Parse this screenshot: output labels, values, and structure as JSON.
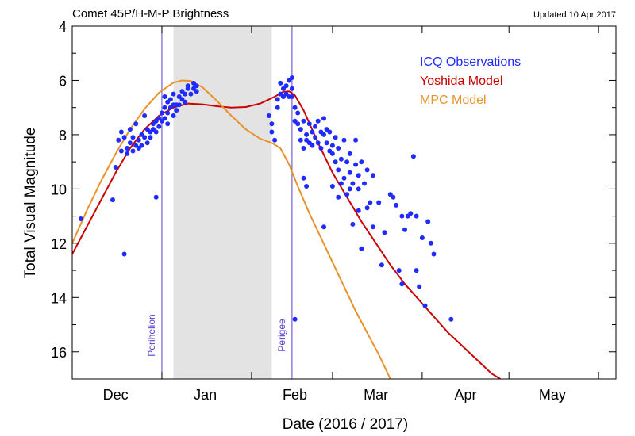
{
  "chart_data": {
    "type": "scatter",
    "title": "Comet 45P/H-M-P Brightness",
    "subtitle": "Updated 10 Apr 2017",
    "xlabel": "Date (2016 / 2017)",
    "ylabel": "Total Visual Magnitude",
    "x_ticks": [
      "Dec",
      "Jan",
      "Feb",
      "Mar",
      "Apr",
      "May"
    ],
    "x_tick_days": [
      15,
      46,
      77,
      105,
      136,
      166
    ],
    "xlim_days": [
      0,
      188
    ],
    "ylim": [
      17,
      4
    ],
    "y_ticks": [
      4,
      6,
      8,
      10,
      12,
      14,
      16
    ],
    "y_inverted": true,
    "grid": false,
    "legend_position": "top-right",
    "shaded_region": {
      "from_day": 35,
      "to_day": 69,
      "color": "#e3e3e3"
    },
    "markers": [
      {
        "label": "Perihelion",
        "day": 31,
        "color": "#5b3fd0"
      },
      {
        "label": "Perigee",
        "day": 76,
        "color": "#5b3fd0"
      }
    ],
    "series": [
      {
        "name": "ICQ Observations",
        "color": "#1f2bff",
        "kind": "points",
        "points": [
          [
            3,
            11.1
          ],
          [
            14,
            10.4
          ],
          [
            15,
            9.2
          ],
          [
            16,
            8.2
          ],
          [
            17,
            8.6
          ],
          [
            17,
            7.9
          ],
          [
            18,
            8.1
          ],
          [
            19,
            8.5
          ],
          [
            19,
            8.7
          ],
          [
            20,
            8.3
          ],
          [
            20,
            7.8
          ],
          [
            21,
            8.1
          ],
          [
            21,
            8.6
          ],
          [
            22,
            8.4
          ],
          [
            22,
            7.6
          ],
          [
            23,
            8.2
          ],
          [
            23,
            8.5
          ],
          [
            24,
            8.0
          ],
          [
            24,
            8.4
          ],
          [
            25,
            8.1
          ],
          [
            25,
            7.3
          ],
          [
            26,
            8.3
          ],
          [
            26,
            7.8
          ],
          [
            27,
            7.9
          ],
          [
            27,
            8.1
          ],
          [
            28,
            7.6
          ],
          [
            28,
            7.8
          ],
          [
            29,
            7.5
          ],
          [
            29,
            7.9
          ],
          [
            30,
            7.4
          ],
          [
            30,
            7.7
          ],
          [
            31,
            7.5
          ],
          [
            31,
            7.2
          ],
          [
            32,
            7.4
          ],
          [
            32,
            7.0
          ],
          [
            32,
            6.6
          ],
          [
            33,
            7.2
          ],
          [
            33,
            6.8
          ],
          [
            33,
            7.6
          ],
          [
            34,
            7.0
          ],
          [
            34,
            6.7
          ],
          [
            35,
            7.3
          ],
          [
            35,
            6.9
          ],
          [
            35,
            6.5
          ],
          [
            36,
            6.9
          ],
          [
            36,
            7.1
          ],
          [
            37,
            6.6
          ],
          [
            37,
            6.9
          ],
          [
            38,
            6.7
          ],
          [
            38,
            6.4
          ],
          [
            39,
            6.8
          ],
          [
            39,
            6.5
          ],
          [
            40,
            6.3
          ],
          [
            40,
            6.2
          ],
          [
            41,
            6.5
          ],
          [
            42,
            6.3
          ],
          [
            42,
            6.1
          ],
          [
            43,
            6.4
          ],
          [
            43,
            6.2
          ],
          [
            18,
            12.4
          ],
          [
            29,
            10.3
          ],
          [
            68,
            7.3
          ],
          [
            69,
            7.6
          ],
          [
            69,
            7.9
          ],
          [
            70,
            8.2
          ],
          [
            71,
            7.0
          ],
          [
            71,
            6.7
          ],
          [
            72,
            6.5
          ],
          [
            72,
            6.1
          ],
          [
            73,
            6.3
          ],
          [
            73,
            6.6
          ],
          [
            74,
            6.2
          ],
          [
            74,
            6.5
          ],
          [
            75,
            6.0
          ],
          [
            75,
            6.6
          ],
          [
            76,
            5.9
          ],
          [
            76,
            6.3
          ],
          [
            76,
            6.6
          ],
          [
            77,
            7.0
          ],
          [
            77,
            7.5
          ],
          [
            77,
            14.8
          ],
          [
            78,
            7.2
          ],
          [
            78,
            7.6
          ],
          [
            79,
            7.8
          ],
          [
            79,
            8.2
          ],
          [
            80,
            7.5
          ],
          [
            80,
            9.6
          ],
          [
            80,
            8.5
          ],
          [
            81,
            8.0
          ],
          [
            81,
            8.2
          ],
          [
            81,
            9.9
          ],
          [
            82,
            7.6
          ],
          [
            82,
            8.3
          ],
          [
            83,
            7.9
          ],
          [
            83,
            8.4
          ],
          [
            84,
            7.7
          ],
          [
            84,
            8.1
          ],
          [
            85,
            7.5
          ],
          [
            85,
            8.3
          ],
          [
            86,
            7.9
          ],
          [
            86,
            8.5
          ],
          [
            87,
            8.0
          ],
          [
            87,
            7.4
          ],
          [
            87,
            11.4
          ],
          [
            88,
            8.3
          ],
          [
            88,
            7.8
          ],
          [
            89,
            7.9
          ],
          [
            89,
            8.6
          ],
          [
            90,
            8.4
          ],
          [
            90,
            9.9
          ],
          [
            90,
            8.7
          ],
          [
            91,
            8.1
          ],
          [
            91,
            9.0
          ],
          [
            92,
            8.5
          ],
          [
            92,
            10.3
          ],
          [
            92,
            9.3
          ],
          [
            93,
            8.9
          ],
          [
            93,
            9.8
          ],
          [
            94,
            8.2
          ],
          [
            94,
            9.6
          ],
          [
            95,
            9.0
          ],
          [
            95,
            10.2
          ],
          [
            96,
            8.7
          ],
          [
            96,
            9.4
          ],
          [
            96,
            10.0
          ],
          [
            97,
            9.8
          ],
          [
            97,
            11.3
          ],
          [
            98,
            8.2
          ],
          [
            98,
            9.1
          ],
          [
            99,
            9.5
          ],
          [
            99,
            10.0
          ],
          [
            99,
            10.8
          ],
          [
            100,
            9.0
          ],
          [
            100,
            12.2
          ],
          [
            101,
            9.8
          ],
          [
            102,
            9.3
          ],
          [
            102,
            10.7
          ],
          [
            103,
            10.5
          ],
          [
            104,
            11.4
          ],
          [
            104,
            9.5
          ],
          [
            106,
            10.5
          ],
          [
            107,
            12.8
          ],
          [
            108,
            11.6
          ],
          [
            110,
            10.2
          ],
          [
            111,
            10.3
          ],
          [
            112,
            10.6
          ],
          [
            113,
            13.0
          ],
          [
            114,
            11.0
          ],
          [
            114,
            13.5
          ],
          [
            115,
            11.5
          ],
          [
            116,
            11.0
          ],
          [
            117,
            10.9
          ],
          [
            118,
            8.8
          ],
          [
            119,
            11.0
          ],
          [
            119,
            13.0
          ],
          [
            120,
            13.6
          ],
          [
            121,
            11.8
          ],
          [
            122,
            14.3
          ],
          [
            123,
            11.2
          ],
          [
            124,
            12.0
          ],
          [
            125,
            12.4
          ],
          [
            131,
            14.8
          ]
        ]
      },
      {
        "name": "Yoshida Model",
        "color": "#cc0000",
        "kind": "line",
        "points": [
          [
            0,
            12.4
          ],
          [
            5,
            11.4
          ],
          [
            10,
            10.4
          ],
          [
            15,
            9.4
          ],
          [
            20,
            8.5
          ],
          [
            25,
            7.8
          ],
          [
            30,
            7.3
          ],
          [
            35,
            7.0
          ],
          [
            40,
            6.85
          ],
          [
            45,
            6.88
          ],
          [
            50,
            6.95
          ],
          [
            55,
            7.0
          ],
          [
            60,
            6.98
          ],
          [
            65,
            6.85
          ],
          [
            70,
            6.6
          ],
          [
            73,
            6.42
          ],
          [
            75,
            6.4
          ],
          [
            77,
            6.55
          ],
          [
            80,
            7.1
          ],
          [
            85,
            8.3
          ],
          [
            90,
            9.4
          ],
          [
            95,
            10.3
          ],
          [
            100,
            11.2
          ],
          [
            105,
            12.0
          ],
          [
            110,
            12.8
          ],
          [
            115,
            13.5
          ],
          [
            120,
            14.1
          ],
          [
            125,
            14.7
          ],
          [
            130,
            15.3
          ],
          [
            135,
            15.8
          ],
          [
            140,
            16.3
          ],
          [
            145,
            16.8
          ],
          [
            148,
            17.0
          ]
        ]
      },
      {
        "name": "MPC Model",
        "color": "#e8932a",
        "kind": "line",
        "points": [
          [
            0,
            12.0
          ],
          [
            5,
            10.8
          ],
          [
            10,
            9.7
          ],
          [
            15,
            8.7
          ],
          [
            20,
            7.8
          ],
          [
            25,
            7.05
          ],
          [
            30,
            6.45
          ],
          [
            35,
            6.08
          ],
          [
            38,
            6.0
          ],
          [
            41,
            6.02
          ],
          [
            45,
            6.25
          ],
          [
            50,
            6.75
          ],
          [
            55,
            7.3
          ],
          [
            60,
            7.8
          ],
          [
            65,
            8.15
          ],
          [
            69,
            8.3
          ],
          [
            72,
            8.5
          ],
          [
            75,
            9.1
          ],
          [
            78,
            9.9
          ],
          [
            82,
            10.9
          ],
          [
            86,
            11.8
          ],
          [
            90,
            12.7
          ],
          [
            94,
            13.6
          ],
          [
            98,
            14.5
          ],
          [
            102,
            15.3
          ],
          [
            106,
            16.1
          ],
          [
            110,
            17.0
          ]
        ]
      }
    ]
  }
}
